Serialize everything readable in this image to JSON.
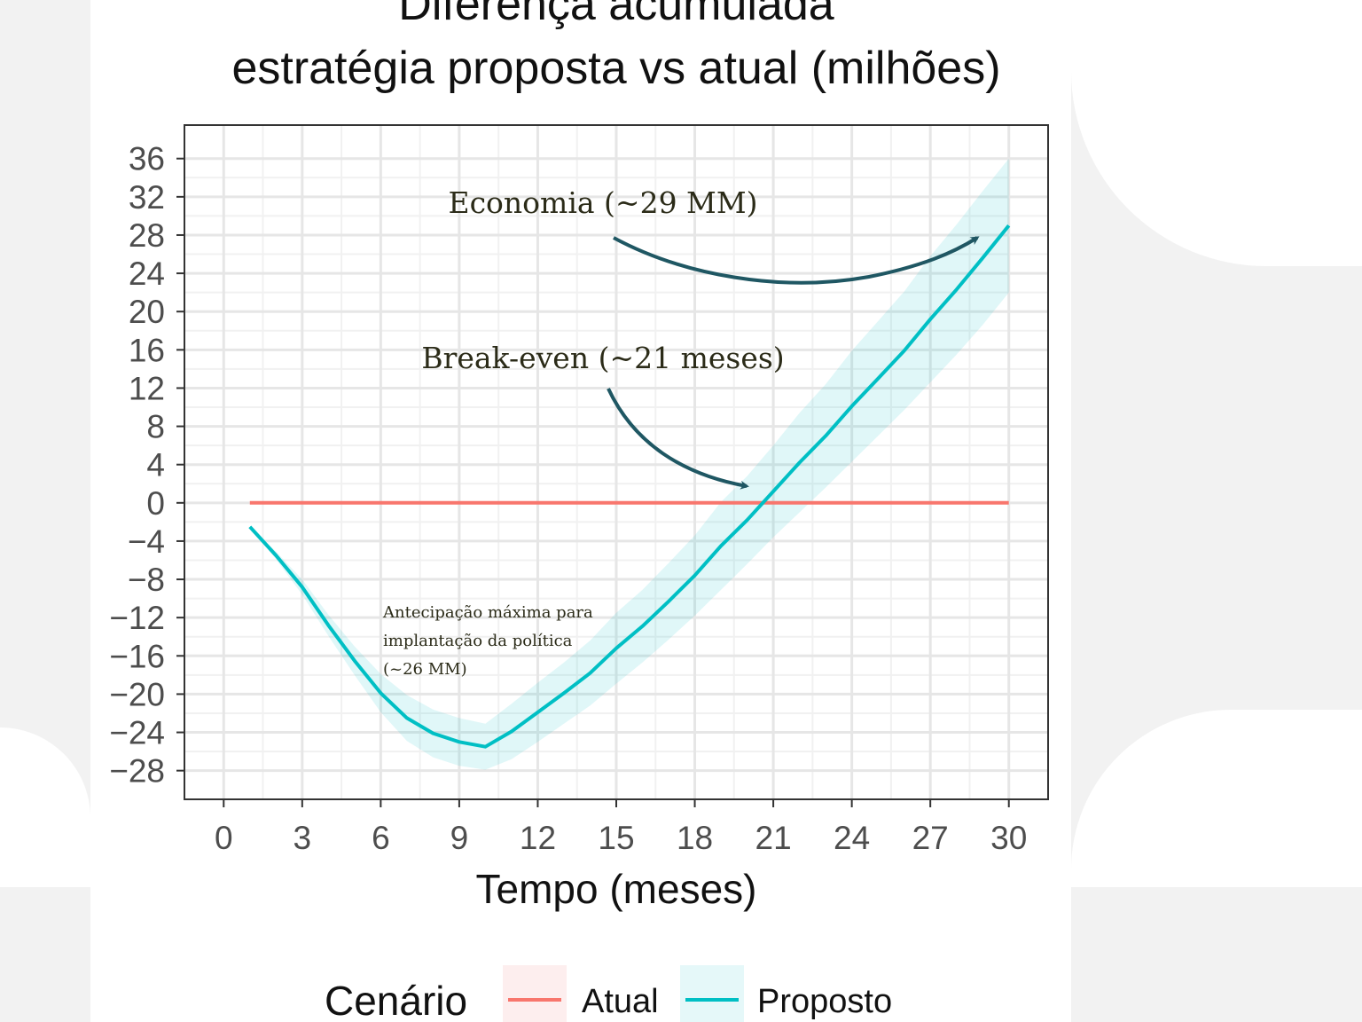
{
  "chart_data": {
    "type": "line",
    "title_lines": [
      "Diferença acumulada",
      "estratégia proposta vs atual (milhões)"
    ],
    "xlabel": "Tempo (meses)",
    "ylabel": "",
    "xlim": [
      -1.5,
      31.5
    ],
    "ylim": [
      -31,
      39.5
    ],
    "x_ticks": [
      0,
      3,
      6,
      9,
      12,
      15,
      18,
      21,
      24,
      27,
      30
    ],
    "y_ticks": [
      -28,
      -24,
      -20,
      -16,
      -12,
      -8,
      -4,
      0,
      4,
      8,
      12,
      16,
      20,
      24,
      28,
      32,
      36
    ],
    "x_tick_labels": [
      "0",
      "3",
      "6",
      "9",
      "12",
      "15",
      "18",
      "21",
      "24",
      "27",
      "30"
    ],
    "y_tick_labels": [
      "−28",
      "−24",
      "−20",
      "−16",
      "−12",
      "−8",
      "−4",
      "0",
      "4",
      "8",
      "12",
      "16",
      "20",
      "24",
      "28",
      "32",
      "36"
    ],
    "grid": true,
    "legend_placement": "bottom",
    "legend_title": "Cenário",
    "series": [
      {
        "name": "Atual",
        "color": "#f8766d",
        "x": [
          1,
          30
        ],
        "y": [
          0,
          0
        ]
      },
      {
        "name": "Proposto",
        "color": "#00bfc4",
        "x": [
          1,
          2,
          3,
          4,
          5,
          6,
          7,
          8,
          9,
          10,
          11,
          12,
          13,
          14,
          15,
          16,
          17,
          18,
          19,
          20,
          21,
          22,
          23,
          24,
          25,
          26,
          27,
          28,
          29,
          30
        ],
        "y": [
          -2.5,
          -5.5,
          -8.8,
          -12.8,
          -16.5,
          -19.9,
          -22.5,
          -24.1,
          -25.0,
          -25.5,
          -23.9,
          -21.9,
          -19.9,
          -17.8,
          -15.2,
          -12.9,
          -10.3,
          -7.6,
          -4.5,
          -1.8,
          1.2,
          4.2,
          7.0,
          10.1,
          13.0,
          15.9,
          19.2,
          22.3,
          25.6,
          29.0
        ],
        "band_lower": [
          -2.5,
          -5.9,
          -9.6,
          -13.9,
          -18.0,
          -21.9,
          -24.9,
          -26.6,
          -27.5,
          -27.9,
          -26.8,
          -25.0,
          -23.1,
          -21.2,
          -18.9,
          -16.7,
          -14.3,
          -11.8,
          -9.1,
          -6.4,
          -3.6,
          -1.0,
          1.6,
          4.3,
          7.0,
          9.7,
          12.6,
          15.5,
          18.6,
          22.0
        ],
        "band_upper": [
          -2.5,
          -5.1,
          -8.0,
          -11.7,
          -15.0,
          -17.9,
          -20.1,
          -21.6,
          -22.5,
          -23.1,
          -21.0,
          -18.8,
          -16.7,
          -14.4,
          -11.5,
          -9.1,
          -6.3,
          -3.4,
          0.1,
          2.8,
          6.0,
          9.4,
          12.4,
          15.9,
          19.0,
          22.1,
          25.8,
          29.1,
          32.6,
          36.0
        ]
      }
    ],
    "annotations": [
      {
        "text": "Economia (~29 MM)"
      },
      {
        "text": "Break-even (~21 meses)"
      },
      {
        "text_lines": [
          "Antecipação máxima para",
          "implantação da política",
          "(~26 MM)"
        ]
      }
    ]
  }
}
